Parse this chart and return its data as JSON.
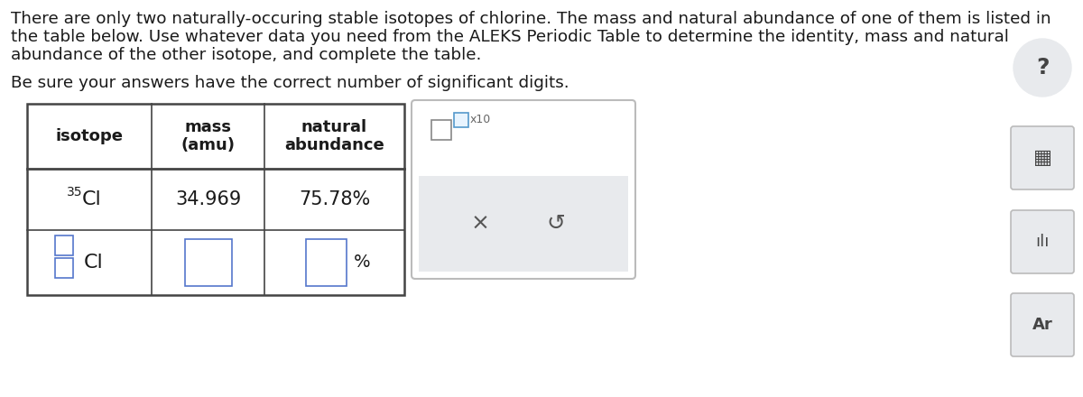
{
  "page_bg": "#ffffff",
  "title_line1": "There are only two naturally-occuring stable isotopes of chlorine. The mass and natural abundance of one of them is listed in",
  "title_line2": "the table below. Use whatever data you need from the ALEKS Periodic Table to determine the identity, mass and natural",
  "title_line3": "abundance of the other isotope, and complete the table.",
  "subtitle": "Be sure your answers have the correct number of significant digits.",
  "col_headers": [
    "isotope",
    "mass\n(amu)",
    "natural\nabundance"
  ],
  "row1_isotope_sup": "35",
  "row1_isotope_base": "Cl",
  "row1_mass": "34.969",
  "row1_abund": "75.78%",
  "text_color": "#1a1a1a",
  "title_fontsize": 13.2,
  "header_fontsize": 13,
  "body_fontsize": 14,
  "table_border_color": "#444444",
  "input_box_color": "#ffffff",
  "input_box_edge": "#5577cc",
  "panel_bg": "#ffffff",
  "panel_border": "#bbbbbb",
  "panel_grey": "#e8eaed",
  "icon_bg": "#e8eaed",
  "icon_border": "#bbbbbb",
  "icon_color": "#444444",
  "x_symbol": "×",
  "undo_symbol": "↺"
}
